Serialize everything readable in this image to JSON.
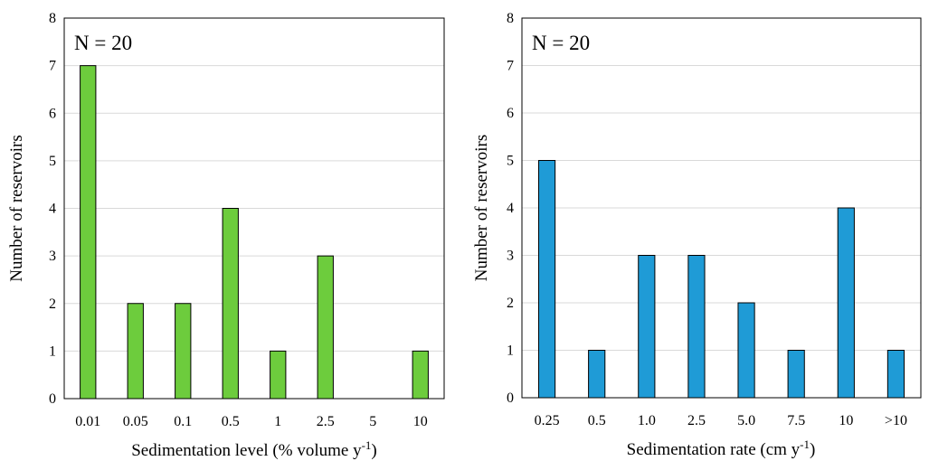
{
  "chart_data": [
    {
      "type": "bar",
      "categories": [
        "0.01",
        "0.05",
        "0.1",
        "0.5",
        "1",
        "2.5",
        "5",
        "10"
      ],
      "values": [
        7,
        2,
        2,
        4,
        1,
        3,
        0,
        1
      ],
      "xlabel": "Sedimentation level (% volume y",
      "xlabel_sup": "-1",
      "xlabel_end": ")",
      "ylabel": "Number of reservoirs",
      "ylim": [
        0,
        8
      ],
      "yticks": [
        "0",
        "1",
        "2",
        "3",
        "4",
        "5",
        "6",
        "7",
        "8"
      ],
      "annotation": "N = 20",
      "grid": true,
      "color": "#6dcc3d"
    },
    {
      "type": "bar",
      "categories": [
        "0.25",
        "0.5",
        "1.0",
        "2.5",
        "5.0",
        "7.5",
        "10",
        ">10"
      ],
      "values": [
        5,
        1,
        3,
        3,
        2,
        1,
        4,
        1
      ],
      "xlabel": "Sedimentation rate (cm y",
      "xlabel_sup": "-1",
      "xlabel_end": ")",
      "ylabel": "Number of reservoirs",
      "ylim": [
        0,
        8
      ],
      "yticks": [
        "0",
        "1",
        "2",
        "3",
        "4",
        "5",
        "6",
        "7",
        "8"
      ],
      "annotation": "N = 20",
      "grid": true,
      "color": "#1f9bd6"
    }
  ]
}
